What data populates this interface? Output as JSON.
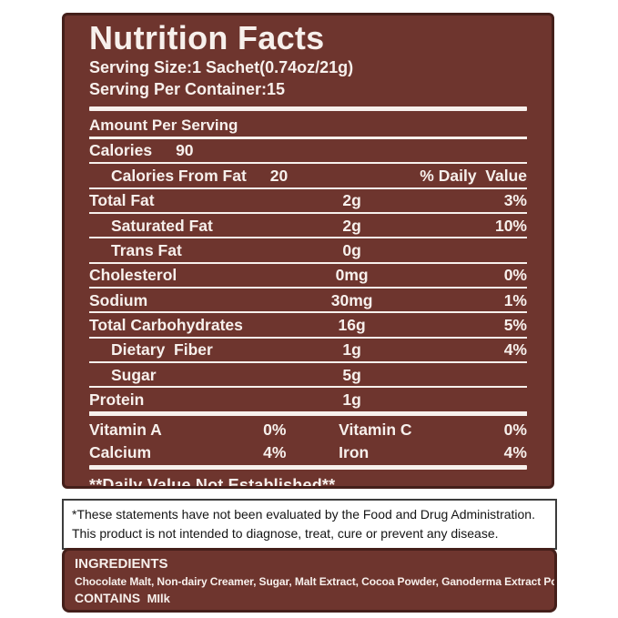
{
  "colors": {
    "panel_brown": "#6e352e",
    "panel_border": "#441f1a",
    "label_text": "#f7f0ec",
    "divider": "#f7f0ec",
    "disclaimer_text": "#141414",
    "disclaimer_border": "#3c3c3c",
    "page_background": "#ffffff"
  },
  "header": {
    "title": "Nutrition Facts",
    "serving_size": "Serving Size:1 Sachet(0.74oz/21g)",
    "servings_per_container": "Serving Per Container:15"
  },
  "summary": {
    "amount_per_serving": "Amount Per Serving",
    "calories_label": "Calories",
    "calories_value": "90",
    "calories_from_fat_label": "Calories From Fat",
    "calories_from_fat_value": "20",
    "daily_value_header": "% Daily  Value"
  },
  "rows": [
    {
      "label": "Total Fat",
      "value": "2g",
      "pct": "3%",
      "indent": false
    },
    {
      "label": "Saturated Fat",
      "value": "2g",
      "pct": "10%",
      "indent": true
    },
    {
      "label": "Trans Fat",
      "value": "0g",
      "pct": "",
      "indent": true
    },
    {
      "label": "Cholesterol",
      "value": "0mg",
      "pct": "0%",
      "indent": false
    },
    {
      "label": "Sodium",
      "value": "30mg",
      "pct": "1%",
      "indent": false
    },
    {
      "label": "Total Carbohydrates",
      "value": "16g",
      "pct": "5%",
      "indent": false
    },
    {
      "label": "Dietary  Fiber",
      "value": "1g",
      "pct": "4%",
      "indent": true
    },
    {
      "label": "Sugar",
      "value": "5g",
      "pct": "",
      "indent": true
    },
    {
      "label": "Protein",
      "value": "1g",
      "pct": "",
      "indent": false
    }
  ],
  "vitamins": [
    {
      "left_label": "Vitamin A",
      "left_value": "0%",
      "right_label": "Vitamin C",
      "right_value": "0%"
    },
    {
      "left_label": "Calcium",
      "left_value": "4%",
      "right_label": "Iron",
      "right_value": "4%"
    }
  ],
  "footnote": "**Daily Value Not Established**",
  "disclaimer": "*These statements have not been evaluated by the Food and Drug Administration. This product is not intended to diagnose, treat, cure or prevent any disease.",
  "ingredients": {
    "heading": "INGREDIENTS",
    "list": "Chocolate Malt, Non-dairy Creamer, Sugar, Malt Extract, Cocoa Powder, Ganoderma Extract Powder",
    "contains_label": "CONTAINS",
    "contains_value": "MIlk"
  }
}
